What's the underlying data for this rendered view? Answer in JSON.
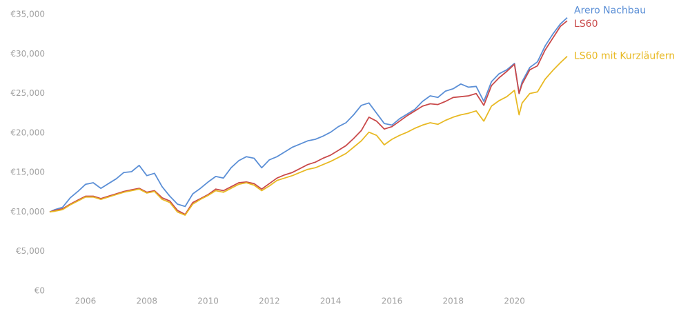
{
  "chart_data": {
    "type": "line",
    "x": [
      2004.83,
      2005,
      2005.25,
      2005.5,
      2005.75,
      2006,
      2006.25,
      2006.5,
      2006.75,
      2007,
      2007.25,
      2007.5,
      2007.75,
      2008,
      2008.25,
      2008.5,
      2008.75,
      2009,
      2009.25,
      2009.5,
      2009.75,
      2010,
      2010.25,
      2010.5,
      2010.75,
      2011,
      2011.25,
      2011.5,
      2011.75,
      2012,
      2012.25,
      2012.5,
      2012.75,
      2013,
      2013.25,
      2013.5,
      2013.75,
      2014,
      2014.25,
      2014.5,
      2014.75,
      2015,
      2015.25,
      2015.5,
      2015.75,
      2016,
      2016.25,
      2016.5,
      2016.75,
      2017,
      2017.25,
      2017.5,
      2017.75,
      2018,
      2018.25,
      2018.5,
      2018.75,
      2019,
      2019.25,
      2019.5,
      2019.75,
      2020,
      2020.15,
      2020.25,
      2020.5,
      2020.75,
      2021,
      2021.25,
      2021.5,
      2021.72
    ],
    "series": [
      {
        "name": "Arero Nachbau",
        "color": "#5b8fd6",
        "values": [
          10000,
          10300,
          10600,
          11800,
          12600,
          13500,
          13700,
          13000,
          13600,
          14200,
          15000,
          15100,
          15900,
          14600,
          14900,
          13200,
          12000,
          11000,
          10700,
          12300,
          13000,
          13800,
          14500,
          14300,
          15600,
          16500,
          17000,
          16800,
          15600,
          16600,
          17000,
          17600,
          18200,
          18600,
          19000,
          19200,
          19600,
          20100,
          20800,
          21300,
          22300,
          23500,
          23800,
          22500,
          21200,
          21000,
          21800,
          22400,
          23000,
          24000,
          24700,
          24500,
          25300,
          25600,
          26200,
          25800,
          25900,
          24000,
          26500,
          27500,
          28000,
          28800,
          25000,
          26500,
          28300,
          29000,
          31000,
          32500,
          33800,
          34600
        ]
      },
      {
        "name": "LS60",
        "color": "#c9494a",
        "values": [
          10000,
          10200,
          10400,
          11000,
          11500,
          12000,
          12000,
          11700,
          12000,
          12300,
          12600,
          12800,
          13000,
          12500,
          12700,
          11800,
          11400,
          10200,
          9700,
          11200,
          11700,
          12200,
          12900,
          12700,
          13200,
          13700,
          13800,
          13600,
          12900,
          13600,
          14300,
          14700,
          15000,
          15500,
          16000,
          16300,
          16800,
          17200,
          17800,
          18400,
          19300,
          20300,
          22000,
          21500,
          20500,
          20800,
          21500,
          22200,
          22800,
          23400,
          23700,
          23600,
          24000,
          24500,
          24600,
          24700,
          25000,
          23500,
          26000,
          27000,
          27800,
          28700,
          25000,
          26200,
          28000,
          28500,
          30500,
          32000,
          33500,
          34200
        ]
      },
      {
        "name": "LS60 mit Kurzläufern",
        "color": "#e8b923",
        "values": [
          10000,
          10100,
          10300,
          10900,
          11400,
          11900,
          11900,
          11600,
          11900,
          12200,
          12500,
          12700,
          12900,
          12400,
          12600,
          11600,
          11200,
          10000,
          9600,
          11000,
          11600,
          12100,
          12700,
          12500,
          13000,
          13500,
          13700,
          13400,
          12700,
          13300,
          14000,
          14300,
          14600,
          15000,
          15400,
          15600,
          16000,
          16400,
          16900,
          17400,
          18200,
          19000,
          20100,
          19700,
          18500,
          19200,
          19700,
          20100,
          20600,
          21000,
          21300,
          21100,
          21600,
          22000,
          22300,
          22500,
          22800,
          21500,
          23400,
          24100,
          24600,
          25400,
          22300,
          23800,
          25000,
          25200,
          26800,
          27900,
          28900,
          29700
        ]
      }
    ],
    "xlim": [
      2004.83,
      2021.72
    ],
    "xticks": [
      2006,
      2008,
      2010,
      2012,
      2014,
      2016,
      2018,
      2020
    ],
    "ylim": [
      0,
      35000
    ],
    "yticks": [
      {
        "value": 0,
        "label": "€0"
      },
      {
        "value": 5000,
        "label": "€5,000"
      },
      {
        "value": 10000,
        "label": "€10,000"
      },
      {
        "value": 15000,
        "label": "€15,000"
      },
      {
        "value": 20000,
        "label": "€20,000"
      },
      {
        "value": 25000,
        "label": "€25,000"
      },
      {
        "value": 30000,
        "label": "€30,000"
      },
      {
        "value": 35000,
        "label": "€35,000"
      }
    ],
    "grid": false
  }
}
